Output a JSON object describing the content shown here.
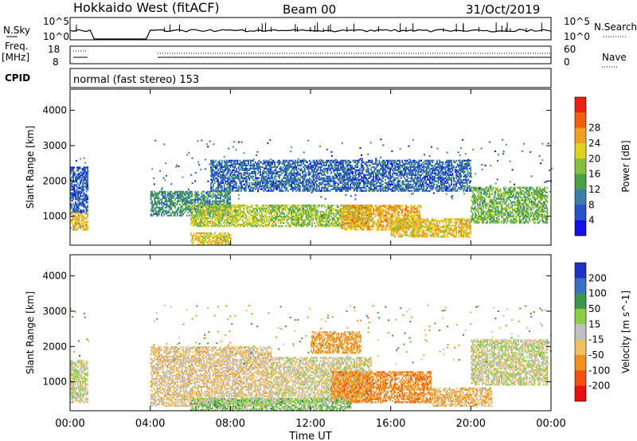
{
  "header": {
    "station": "Hokkaido West (fitACF)",
    "beam": "Beam 00",
    "date": "31/Oct/2019"
  },
  "summary": {
    "nsky_label": "N.Sky",
    "nsky_ticks": [
      "10^5",
      "10^0"
    ],
    "nsearch_label": "N.Search",
    "nsearch_ticks": [
      "10^5",
      "10^0"
    ],
    "freq_label": "Freq.",
    "freq_unit": "[MHz]",
    "freq_ticks": [
      "18",
      "8"
    ],
    "nave_label": "Nave",
    "nave_ticks": [
      "60",
      "0"
    ],
    "cpid_label": "CPID",
    "cpid_value": "normal (fast stereo) 153"
  },
  "chart_data": [
    {
      "type": "heatmap",
      "name": "power",
      "xlabel": "",
      "ylabel": "Slant Range [km]",
      "x_ticks": [
        "00:00",
        "04:00",
        "08:00",
        "12:00",
        "16:00",
        "20:00",
        "00:00"
      ],
      "x_range_hours": [
        0,
        24
      ],
      "y_ticks": [
        1000,
        2000,
        3000,
        4000
      ],
      "y_range_km": [
        180,
        4600
      ],
      "data_gaps_hours": [
        [
          1.0,
          4.0
        ]
      ],
      "colorbar": {
        "label": "Power [dB]",
        "ticks": [
          "4",
          "8",
          "12",
          "16",
          "20",
          "24",
          "28"
        ],
        "colors": [
          "#1010e8",
          "#2a52c8",
          "#3a80a8",
          "#48a048",
          "#84c03c",
          "#e0d020",
          "#f0a020",
          "#f06010",
          "#e82010"
        ]
      },
      "regions": [
        {
          "t0": 0.0,
          "t1": 0.9,
          "r0": 600,
          "r1": 1100,
          "value": 26
        },
        {
          "t0": 0.0,
          "t1": 0.9,
          "r0": 1100,
          "r1": 2400,
          "value": 9
        },
        {
          "t0": 4.0,
          "t1": 8.0,
          "r0": 1000,
          "r1": 1700,
          "value": 14
        },
        {
          "t0": 6.0,
          "t1": 10.0,
          "r0": 700,
          "r1": 1300,
          "value": 22
        },
        {
          "t0": 10.0,
          "t1": 15.0,
          "r0": 700,
          "r1": 1300,
          "value": 20
        },
        {
          "t0": 13.5,
          "t1": 17.5,
          "r0": 600,
          "r1": 1300,
          "value": 27
        },
        {
          "t0": 16.0,
          "t1": 20.0,
          "r0": 400,
          "r1": 900,
          "value": 25
        },
        {
          "t0": 20.0,
          "t1": 23.8,
          "r0": 800,
          "r1": 1800,
          "value": 18
        },
        {
          "t0": 7.0,
          "t1": 20.0,
          "r0": 1700,
          "r1": 2600,
          "value": 10
        },
        {
          "t0": 6.0,
          "t1": 8.0,
          "r0": 180,
          "r1": 500,
          "value": 24
        }
      ]
    },
    {
      "type": "heatmap",
      "name": "velocity",
      "xlabel": "Time UT",
      "ylabel": "Slant Range [km]",
      "x_ticks": [
        "00:00",
        "04:00",
        "08:00",
        "12:00",
        "16:00",
        "20:00",
        "00:00"
      ],
      "x_range_hours": [
        0,
        24
      ],
      "y_ticks": [
        1000,
        2000,
        3000,
        4000
      ],
      "y_range_km": [
        180,
        4600
      ],
      "data_gaps_hours": [
        [
          1.0,
          4.0
        ]
      ],
      "colorbar": {
        "label": "Velocity [m s^-1]",
        "ticks": [
          "200",
          "100",
          "50",
          "15",
          "-15",
          "-50",
          "-100",
          "-200"
        ],
        "colors": [
          "#2030c8",
          "#3a70c0",
          "#3a9848",
          "#88d040",
          "#c0c0c0",
          "#f0c060",
          "#f09020",
          "#f05010",
          "#e81010"
        ]
      },
      "regions": [
        {
          "t0": 0.0,
          "t1": 0.9,
          "r0": 400,
          "r1": 1600,
          "value": 0
        },
        {
          "t0": 4.0,
          "t1": 10.0,
          "r0": 300,
          "r1": 2000,
          "value": -20
        },
        {
          "t0": 10.0,
          "t1": 15.0,
          "r0": 400,
          "r1": 1700,
          "value": -10
        },
        {
          "t0": 13.0,
          "t1": 18.0,
          "r0": 400,
          "r1": 1300,
          "value": -80
        },
        {
          "t0": 12.0,
          "t1": 14.5,
          "r0": 1800,
          "r1": 2400,
          "value": -60
        },
        {
          "t0": 18.0,
          "t1": 21.0,
          "r0": 300,
          "r1": 800,
          "value": -40
        },
        {
          "t0": 20.0,
          "t1": 23.8,
          "r0": 900,
          "r1": 2200,
          "value": 0
        },
        {
          "t0": 6.0,
          "t1": 14.0,
          "r0": 180,
          "r1": 500,
          "value": 30
        }
      ]
    }
  ]
}
